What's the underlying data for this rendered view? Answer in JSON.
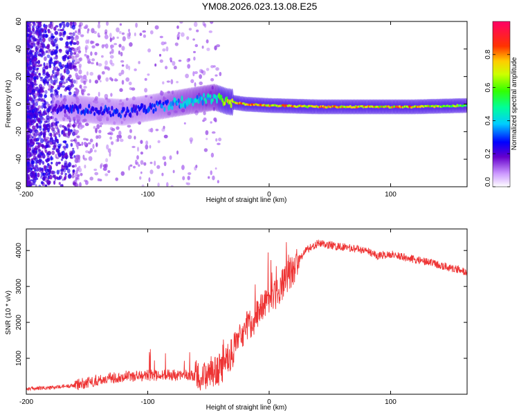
{
  "title": "YM08.2026.023.13.08.E25",
  "chart_data": [
    {
      "type": "heatmap",
      "name": "spectrogram",
      "xlabel": "Height of straight line (km)",
      "ylabel": "Frequency (Hz)",
      "xlim": [
        -200,
        163
      ],
      "ylim": [
        -60,
        60
      ],
      "xticks": [
        -200,
        -100,
        0,
        100
      ],
      "yticks": [
        -60,
        -40,
        -20,
        0,
        20,
        40,
        60
      ],
      "colorbar": {
        "label": "Normalized spectral amplitude",
        "range": [
          0,
          1
        ],
        "ticks": [
          "0.0",
          "0.2",
          "0.4",
          "0.6",
          "0.8"
        ],
        "tick_values": [
          0,
          0.2,
          0.4,
          0.6,
          0.8
        ]
      },
      "ridge": {
        "x": [
          -175,
          -160,
          -140,
          -120,
          -100,
          -80,
          -60,
          -45,
          -35,
          -20,
          0,
          40,
          80,
          100,
          120,
          163
        ],
        "frequency": [
          -3,
          -3,
          -5,
          -6,
          -3,
          0,
          3,
          5,
          2,
          0,
          -1,
          -2,
          -2,
          -2,
          -2,
          -1
        ],
        "amplitude": [
          0.25,
          0.3,
          0.3,
          0.3,
          0.3,
          0.4,
          0.45,
          0.5,
          0.75,
          0.9,
          0.85,
          0.85,
          0.8,
          0.85,
          0.85,
          0.6
        ]
      }
    },
    {
      "type": "line",
      "name": "snr",
      "xlabel": "Height of straight line (km)",
      "ylabel": "SNR (10 * v/v)",
      "xlim": [
        -200,
        163
      ],
      "ylim": [
        0,
        4600
      ],
      "xticks": [
        -200,
        -100,
        0,
        100
      ],
      "yticks": [
        1000,
        2000,
        3000,
        4000
      ],
      "color": "#ee3333",
      "series": [
        {
          "name": "SNR",
          "x": [
            -200,
            -180,
            -160,
            -140,
            -120,
            -100,
            -80,
            -60,
            -40,
            -30,
            -20,
            -10,
            0,
            10,
            20,
            30,
            40,
            60,
            80,
            90,
            100,
            120,
            140,
            163
          ],
          "y": [
            150,
            180,
            250,
            400,
            500,
            520,
            550,
            500,
            700,
            1200,
            1800,
            2200,
            2600,
            3000,
            3500,
            4000,
            4200,
            4100,
            4000,
            3850,
            3900,
            3750,
            3600,
            3400
          ]
        }
      ]
    }
  ]
}
